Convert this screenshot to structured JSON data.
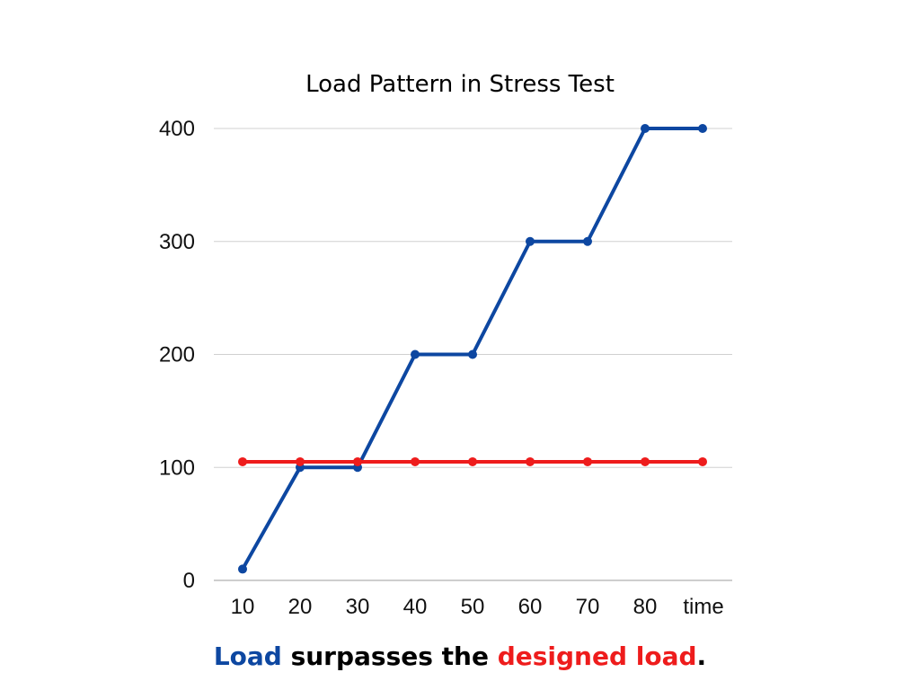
{
  "chart_data": {
    "type": "line",
    "title": "Load Pattern in Stress Test",
    "xlabel": "",
    "ylabel": "",
    "categories": [
      "10",
      "20",
      "30",
      "40",
      "50",
      "60",
      "70",
      "80",
      "time"
    ],
    "ylim": [
      0,
      400
    ],
    "yticks": [
      0,
      100,
      200,
      300,
      400
    ],
    "grid": true,
    "legend": "none",
    "series": [
      {
        "color": "#0d47a1",
        "values": [
          10,
          100,
          100,
          200,
          200,
          300,
          300,
          400,
          400
        ]
      },
      {
        "color": "#ee1c1c",
        "values": [
          105,
          105,
          105,
          105,
          105,
          105,
          105,
          105,
          105
        ]
      }
    ]
  },
  "caption": {
    "part1": "Load",
    "part2": " surpasses the ",
    "part3": "designed load",
    "part4": ".",
    "color1": "#0d47a1",
    "color3": "#ee1c1c"
  }
}
